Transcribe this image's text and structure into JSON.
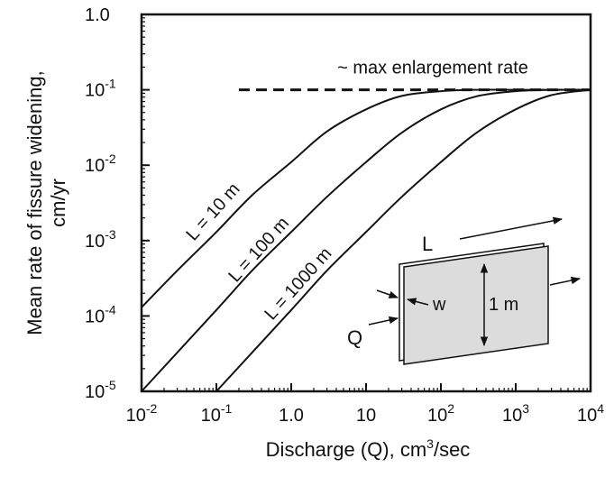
{
  "chart_data": {
    "type": "line",
    "xlabel_main": "Discharge (Q), cm",
    "xlabel_sup": "3",
    "xlabel_tail": "/sec",
    "ylabel_line1": "Mean rate of fissure widening,",
    "ylabel_line2": "cm/yr",
    "x_scale": "log",
    "y_scale": "log",
    "xlim": [
      0.01,
      10000
    ],
    "ylim": [
      1e-05,
      1.0
    ],
    "grid": false,
    "x_ticks": [
      {
        "value": 0.01,
        "base": "10",
        "exp": "-2"
      },
      {
        "value": 0.1,
        "base": "10",
        "exp": "-1"
      },
      {
        "value": 1,
        "base": "1.0",
        "exp": ""
      },
      {
        "value": 10,
        "base": "10",
        "exp": ""
      },
      {
        "value": 100,
        "base": "10",
        "exp": "2"
      },
      {
        "value": 1000,
        "base": "10",
        "exp": "3"
      },
      {
        "value": 10000,
        "base": "10",
        "exp": "4"
      }
    ],
    "y_ticks": [
      {
        "value": 1.0,
        "base": "1.0",
        "exp": ""
      },
      {
        "value": 0.1,
        "base": "10",
        "exp": "-1"
      },
      {
        "value": 0.01,
        "base": "10",
        "exp": "-2"
      },
      {
        "value": 0.001,
        "base": "10",
        "exp": "-3"
      },
      {
        "value": 0.0001,
        "base": "10",
        "exp": "-4"
      },
      {
        "value": 1e-05,
        "base": "10",
        "exp": "-5"
      }
    ],
    "max_rate": {
      "label": "~ max enlargement rate",
      "y": 0.1,
      "x_start": 0.2,
      "x_end": 10000
    },
    "series": [
      {
        "name": "L = 10 m",
        "x": [
          0.01,
          0.03,
          0.1,
          0.3,
          1,
          3,
          10,
          30,
          100,
          300,
          1000,
          10000
        ],
        "y": [
          0.00013,
          0.0004,
          0.0013,
          0.004,
          0.011,
          0.028,
          0.055,
          0.083,
          0.096,
          0.1,
          0.1,
          0.1
        ]
      },
      {
        "name": "L = 100 m",
        "x": [
          0.01,
          0.1,
          0.3,
          1,
          3,
          10,
          30,
          100,
          300,
          1000,
          3000,
          10000
        ],
        "y": [
          1e-05,
          0.00012,
          0.0004,
          0.0013,
          0.0038,
          0.011,
          0.027,
          0.055,
          0.082,
          0.096,
          0.1,
          0.1
        ]
      },
      {
        "name": "L = 1000 m",
        "x": [
          0.1,
          1,
          3,
          10,
          30,
          100,
          300,
          1000,
          3000,
          10000
        ],
        "y": [
          1e-05,
          0.00012,
          0.0004,
          0.0013,
          0.0038,
          0.011,
          0.027,
          0.055,
          0.085,
          0.1
        ]
      }
    ],
    "inset": {
      "L": "L",
      "w": "w",
      "Q": "Q",
      "height": "1 m"
    }
  }
}
